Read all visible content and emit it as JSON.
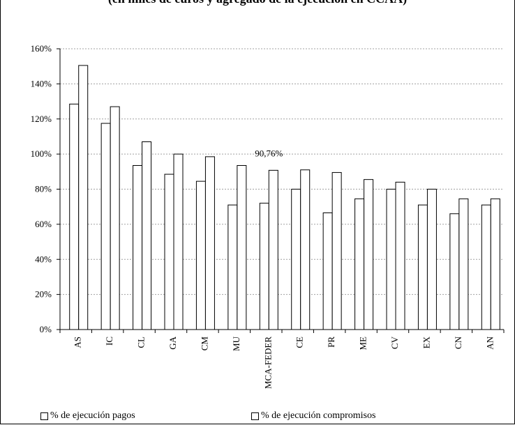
{
  "title_fragment": "(en miles de euros y agregado de la ejecución en CCAA)",
  "chart_data": {
    "type": "bar",
    "categories": [
      "AS",
      "IC",
      "CL",
      "GA",
      "CM",
      "MU",
      "MCA-FEDER",
      "CE",
      "PR",
      "ME",
      "CV",
      "EX",
      "CN",
      "AN"
    ],
    "series": [
      {
        "name": "% de ejecución pagos",
        "values": [
          128.5,
          117.5,
          93.5,
          88.5,
          84.5,
          71,
          72,
          80,
          66.5,
          74.5,
          80,
          71,
          66,
          71
        ]
      },
      {
        "name": "% de ejecución compromisos",
        "values": [
          150.5,
          127,
          107,
          100,
          98.5,
          93.5,
          90.76,
          91,
          89.5,
          85.5,
          84,
          80,
          74.5,
          74.5
        ]
      }
    ],
    "ylim": [
      0,
      160
    ],
    "yticks": [
      "0%",
      "20%",
      "40%",
      "60%",
      "80%",
      "100%",
      "120%",
      "140%",
      "160%"
    ],
    "annotations": [
      {
        "category": "MCA-FEDER",
        "series": 1,
        "text": "90,76%"
      }
    ],
    "grid": true,
    "grid_style": "dotted horizontal",
    "legend_position": "bottom",
    "bar_fill": "#ffffff",
    "bar_stroke": "#000000",
    "grid_color": "#a0a0a0"
  }
}
